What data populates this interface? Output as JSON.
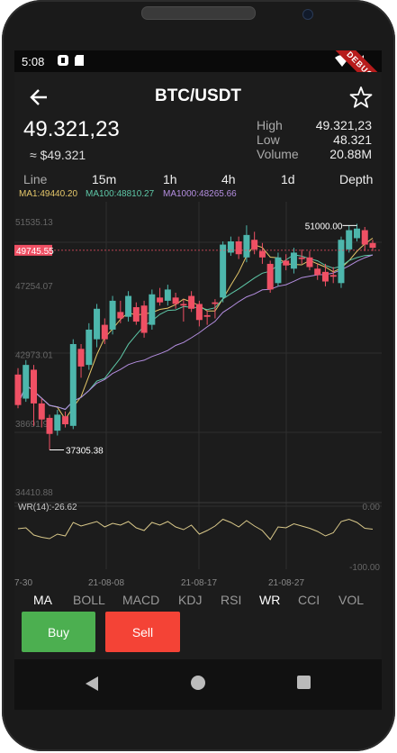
{
  "status": {
    "time": "5:08"
  },
  "header": {
    "title": "BTC/USDT",
    "debug_banner": "DEBUG"
  },
  "price": {
    "main": "49.321,23",
    "sub": "≈ $49.321"
  },
  "stats": {
    "high_label": "High",
    "high_value": "49.321,23",
    "low_label": "Low",
    "low_value": "48.321",
    "volume_label": "Volume",
    "volume_value": "20.88M"
  },
  "timeframes": [
    "Line",
    "15m",
    "1h",
    "4h",
    "1d",
    "Depth"
  ],
  "ma": [
    {
      "text": "MA1:49440.20",
      "color": "#e6c86a"
    },
    {
      "text": "MA100:48810.27",
      "color": "#5ec8a8"
    },
    {
      "text": "MA1000:48265.66",
      "color": "#b48ee0"
    }
  ],
  "chart_data": {
    "type": "candlestick",
    "y_tick_labels": [
      "51535.13",
      "47254.07",
      "42973.01",
      "38691.94",
      "34410.88"
    ],
    "x_tick_labels": [
      "7-30",
      "21-08-08",
      "21-08-17",
      "21-08-27"
    ],
    "current_price_label": "49745.55",
    "annotations": {
      "max": "51000.00",
      "min": "37305.38"
    },
    "indicator": {
      "label": "WR(14):-26.62",
      "top": "0.00",
      "bottom": "-100.00"
    },
    "candles": [
      {
        "o": 42000,
        "c": 40100,
        "h": 42400,
        "l": 39900
      },
      {
        "o": 40500,
        "c": 42600,
        "h": 42900,
        "l": 40300
      },
      {
        "o": 42300,
        "c": 40200,
        "h": 42600,
        "l": 38800
      },
      {
        "o": 40200,
        "c": 39200,
        "h": 40500,
        "l": 38700
      },
      {
        "o": 39300,
        "c": 38300,
        "h": 39500,
        "l": 37300
      },
      {
        "o": 38500,
        "c": 39500,
        "h": 39800,
        "l": 38200
      },
      {
        "o": 39400,
        "c": 38900,
        "h": 39700,
        "l": 38700
      },
      {
        "o": 38800,
        "c": 43900,
        "h": 44200,
        "l": 38600
      },
      {
        "o": 43600,
        "c": 42500,
        "h": 43900,
        "l": 41800
      },
      {
        "o": 42600,
        "c": 44800,
        "h": 45200,
        "l": 42300
      },
      {
        "o": 44200,
        "c": 46100,
        "h": 46400,
        "l": 43700
      },
      {
        "o": 45100,
        "c": 44200,
        "h": 45500,
        "l": 43900
      },
      {
        "o": 44800,
        "c": 46600,
        "h": 46900,
        "l": 44500
      },
      {
        "o": 45900,
        "c": 45500,
        "h": 46600,
        "l": 45200
      },
      {
        "o": 45600,
        "c": 46900,
        "h": 47200,
        "l": 45300
      },
      {
        "o": 46200,
        "c": 45300,
        "h": 46500,
        "l": 45100
      },
      {
        "o": 46300,
        "c": 44600,
        "h": 46600,
        "l": 44300
      },
      {
        "o": 45100,
        "c": 47000,
        "h": 47300,
        "l": 44800
      },
      {
        "o": 46800,
        "c": 46500,
        "h": 47400,
        "l": 46300
      },
      {
        "o": 46600,
        "c": 47300,
        "h": 47600,
        "l": 46300
      },
      {
        "o": 46800,
        "c": 46400,
        "h": 47100,
        "l": 46100
      },
      {
        "o": 46400,
        "c": 46300,
        "h": 46700,
        "l": 45300
      },
      {
        "o": 46900,
        "c": 46100,
        "h": 47200,
        "l": 45900
      },
      {
        "o": 46400,
        "c": 45400,
        "h": 46600,
        "l": 45000
      },
      {
        "o": 45700,
        "c": 45600,
        "h": 46000,
        "l": 45100
      },
      {
        "o": 46500,
        "c": 46400,
        "h": 46700,
        "l": 45500
      },
      {
        "o": 46800,
        "c": 50100,
        "h": 50300,
        "l": 46500
      },
      {
        "o": 49600,
        "c": 50300,
        "h": 50600,
        "l": 49400
      },
      {
        "o": 50300,
        "c": 49500,
        "h": 50600,
        "l": 49200
      },
      {
        "o": 49300,
        "c": 50700,
        "h": 51300,
        "l": 49000
      },
      {
        "o": 50400,
        "c": 49800,
        "h": 50900,
        "l": 49500
      },
      {
        "o": 49700,
        "c": 49300,
        "h": 50200,
        "l": 48900
      },
      {
        "o": 48900,
        "c": 47300,
        "h": 49100,
        "l": 47100
      },
      {
        "o": 47700,
        "c": 49300,
        "h": 49600,
        "l": 47500
      },
      {
        "o": 49100,
        "c": 48800,
        "h": 49500,
        "l": 48500
      },
      {
        "o": 48600,
        "c": 49600,
        "h": 49900,
        "l": 48300
      },
      {
        "o": 49300,
        "c": 49200,
        "h": 49800,
        "l": 48900
      },
      {
        "o": 49300,
        "c": 48700,
        "h": 49700,
        "l": 48500
      },
      {
        "o": 48600,
        "c": 48200,
        "h": 48900,
        "l": 47900
      },
      {
        "o": 48400,
        "c": 47800,
        "h": 48900,
        "l": 47500
      },
      {
        "o": 48200,
        "c": 48100,
        "h": 48700,
        "l": 47700
      },
      {
        "o": 47700,
        "c": 50400,
        "h": 50600,
        "l": 47400
      },
      {
        "o": 49800,
        "c": 51000,
        "h": 51300,
        "l": 49600
      },
      {
        "o": 50500,
        "c": 51100,
        "h": 51400,
        "l": 50300
      },
      {
        "o": 51000,
        "c": 50100,
        "h": 51200,
        "l": 49700
      },
      {
        "o": 50200,
        "c": 49900,
        "h": 50400,
        "l": 49700
      }
    ],
    "wr_values": [
      -26,
      -24,
      -40,
      -45,
      -48,
      -38,
      -42,
      -12,
      -20,
      -15,
      -10,
      -22,
      -14,
      -18,
      -10,
      -24,
      -30,
      -12,
      -18,
      -10,
      -22,
      -28,
      -18,
      -38,
      -30,
      -20,
      -5,
      -12,
      -22,
      -8,
      -20,
      -30,
      -50,
      -22,
      -24,
      -15,
      -20,
      -25,
      -32,
      -42,
      -35,
      -10,
      -5,
      -12,
      -25,
      -27
    ]
  },
  "indicator_tabs": [
    "MA",
    "BOLL",
    "MACD",
    "KDJ",
    "RSI",
    "WR",
    "CCI",
    "VOL"
  ],
  "active_tabs": {
    "main": "MA",
    "secondary": "WR"
  },
  "actions": {
    "buy": "Buy",
    "sell": "Sell"
  },
  "colors": {
    "up": "#4db6ac",
    "down": "#ef5064",
    "buy": "#4caf50",
    "sell": "#f44336"
  }
}
